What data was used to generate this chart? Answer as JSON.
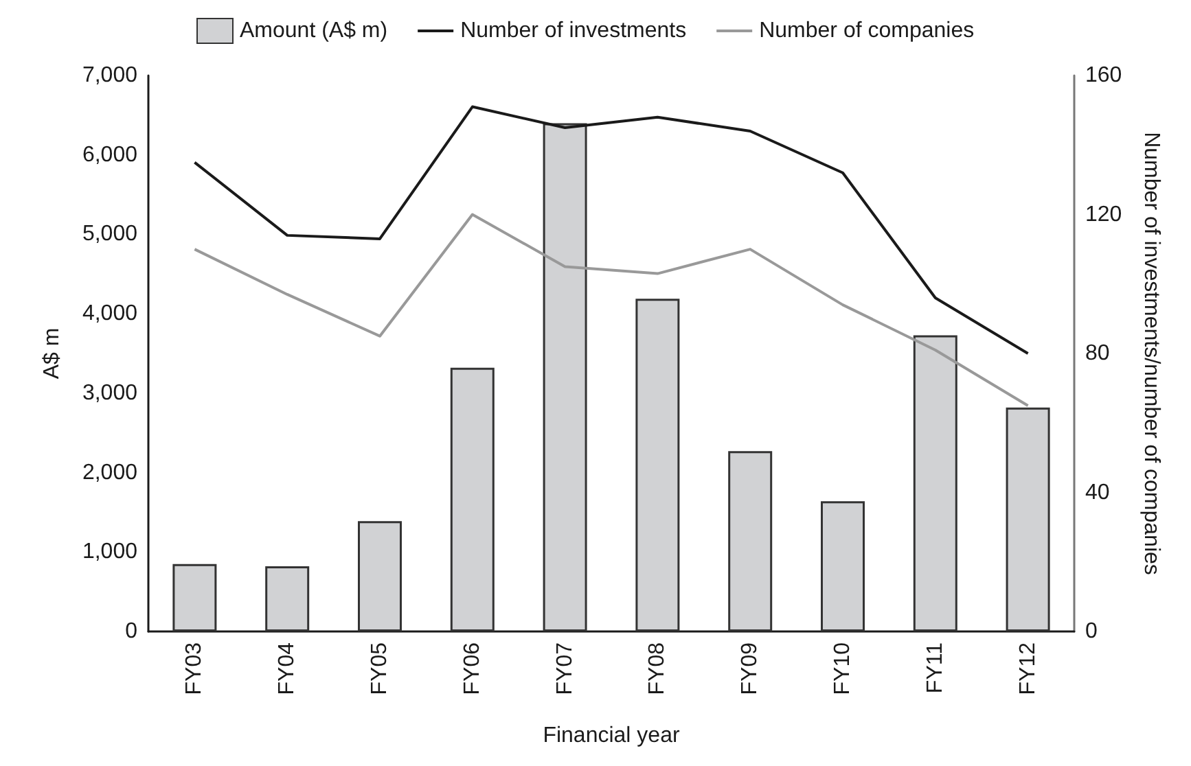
{
  "chart_data": {
    "type": "bar",
    "categories": [
      "FY03",
      "FY04",
      "FY05",
      "FY06",
      "FY07",
      "FY08",
      "FY09",
      "FY10",
      "FY11",
      "FY12"
    ],
    "series": [
      {
        "name": "Amount (A$ m)",
        "color": "#d1d2d4",
        "values": [
          850,
          820,
          1390,
          3320,
          6400,
          4190,
          2270,
          1640,
          3730,
          2820
        ]
      },
      {
        "name": "Number of investments",
        "type": "line",
        "axis": "y2",
        "color": "#1a1a1a",
        "values": [
          135,
          114,
          113,
          151,
          145,
          148,
          144,
          132,
          96,
          80
        ]
      },
      {
        "name": "Number of companies",
        "type": "line",
        "axis": "y2",
        "color": "#999999",
        "values": [
          110,
          97,
          85,
          120,
          105,
          103,
          110,
          94,
          81,
          65
        ]
      }
    ],
    "xlabel": "Financial year",
    "ylabel": "A$ m",
    "y2label": "Number of investments/number of companies",
    "ylim": [
      0,
      7000
    ],
    "yticks": [
      {
        "value": 0,
        "label": "0"
      },
      {
        "value": 1000,
        "label": "1,000"
      },
      {
        "value": 2000,
        "label": "2,000"
      },
      {
        "value": 3000,
        "label": "3,000"
      },
      {
        "value": 4000,
        "label": "4,000"
      },
      {
        "value": 5000,
        "label": "5,000"
      },
      {
        "value": 6000,
        "label": "6,000"
      },
      {
        "value": 7000,
        "label": "7,000"
      }
    ],
    "y2lim": [
      0,
      160
    ],
    "y2ticks": [
      0,
      40,
      80,
      120,
      160
    ],
    "legend": "top",
    "grid": false,
    "marker": "none",
    "line_style": "solid"
  }
}
